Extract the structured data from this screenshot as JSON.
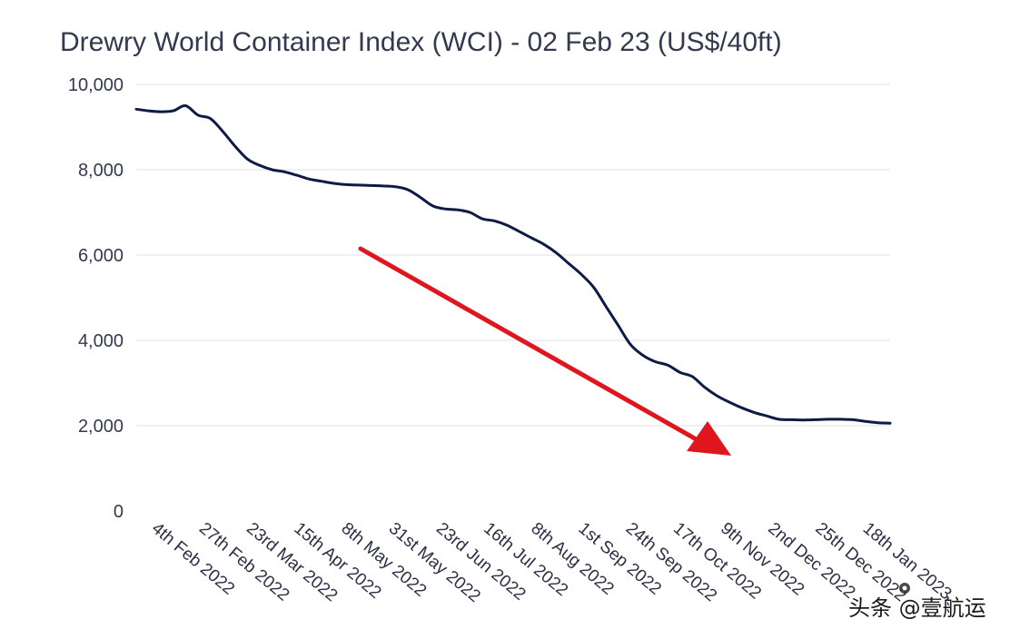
{
  "chart_data": {
    "type": "line",
    "title": "Drewry World Container Index (WCI) - 02 Feb 23 (US$/40ft)",
    "xlabel": "",
    "ylabel": "",
    "ylim": [
      0,
      10000
    ],
    "y_ticks": [
      "10,000",
      "8,000",
      "6,000",
      "4,000",
      "2,000",
      "0"
    ],
    "y_tick_values": [
      10000,
      8000,
      6000,
      4000,
      2000,
      0
    ],
    "x_tick_labels": [
      "4th Feb 2022",
      "27th Feb 2022",
      "23rd Mar 2022",
      "15th Apr 2022",
      "8th May 2022",
      "31st May 2022",
      "23rd Jun 2022",
      "16th Jul 2022",
      "8th Aug 2022",
      "1st Sep 2022",
      "24th Sep 2022",
      "17th Oct 2022",
      "9th Nov 2022",
      "2nd Dec 2022",
      "25th Dec 2022",
      "18th Jan 2023"
    ],
    "grid": true,
    "series": [
      {
        "name": "WCI",
        "color": "#0d1b45",
        "values": [
          9420,
          9380,
          9360,
          9380,
          9500,
          9280,
          9200,
          8900,
          8550,
          8250,
          8100,
          8000,
          7950,
          7870,
          7780,
          7730,
          7680,
          7650,
          7640,
          7630,
          7620,
          7600,
          7530,
          7350,
          7150,
          7080,
          7060,
          7000,
          6850,
          6800,
          6700,
          6550,
          6400,
          6250,
          6050,
          5800,
          5550,
          5250,
          4800,
          4350,
          3900,
          3650,
          3500,
          3420,
          3250,
          3150,
          2900,
          2700,
          2550,
          2420,
          2310,
          2230,
          2150,
          2140,
          2135,
          2140,
          2150,
          2150,
          2140,
          2100,
          2070,
          2060
        ]
      }
    ],
    "annotation": {
      "type": "arrow",
      "color": "#e0161e",
      "meaning": "downward trend"
    }
  },
  "watermark": {
    "text": "头条 @壹航运"
  }
}
